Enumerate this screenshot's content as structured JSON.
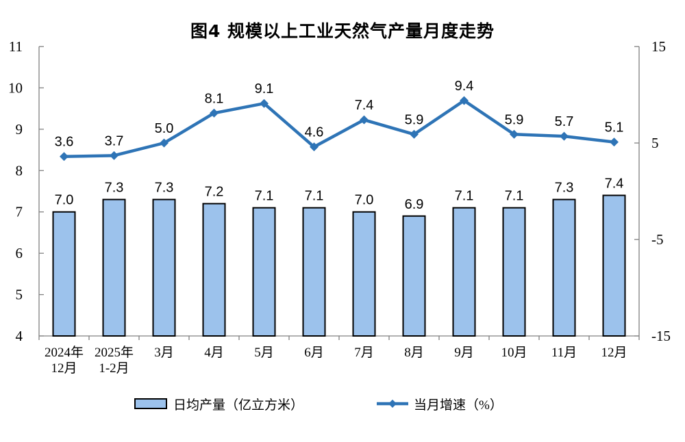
{
  "chart_data": {
    "type": "bar+line",
    "title": "图4  规模以上工业天然气产量月度走势",
    "categories": [
      [
        "2024年",
        "12月"
      ],
      [
        "2025年",
        "1-2月"
      ],
      [
        "3月"
      ],
      [
        "4月"
      ],
      [
        "5月"
      ],
      [
        "6月"
      ],
      [
        "7月"
      ],
      [
        "8月"
      ],
      [
        "9月"
      ],
      [
        "10月"
      ],
      [
        "11月"
      ],
      [
        "12月"
      ]
    ],
    "series": [
      {
        "name": "日均产量（亿立方米）",
        "type": "bar",
        "axis": "left",
        "values": [
          7.0,
          7.3,
          7.3,
          7.2,
          7.1,
          7.1,
          7.0,
          6.9,
          7.1,
          7.1,
          7.3,
          7.4
        ]
      },
      {
        "name": "当月增速（%）",
        "type": "line",
        "axis": "right",
        "values": [
          3.6,
          3.7,
          5.0,
          8.1,
          9.1,
          4.6,
          7.4,
          5.9,
          9.4,
          5.9,
          5.7,
          5.1
        ]
      }
    ],
    "left_axis": {
      "min": 4,
      "max": 11,
      "ticks": [
        4,
        5,
        6,
        7,
        8,
        9,
        10,
        11
      ]
    },
    "right_axis": {
      "min": -15,
      "max": 15,
      "ticks": [
        -15,
        -5,
        5,
        15
      ]
    },
    "value_label_decimals": 1,
    "grid": false,
    "legend_position": "bottom"
  },
  "colors": {
    "bar_fill": "#9CC2EC",
    "bar_border": "#000000",
    "line": "#2E74B6",
    "axis": "#808080",
    "text": "#000000"
  }
}
